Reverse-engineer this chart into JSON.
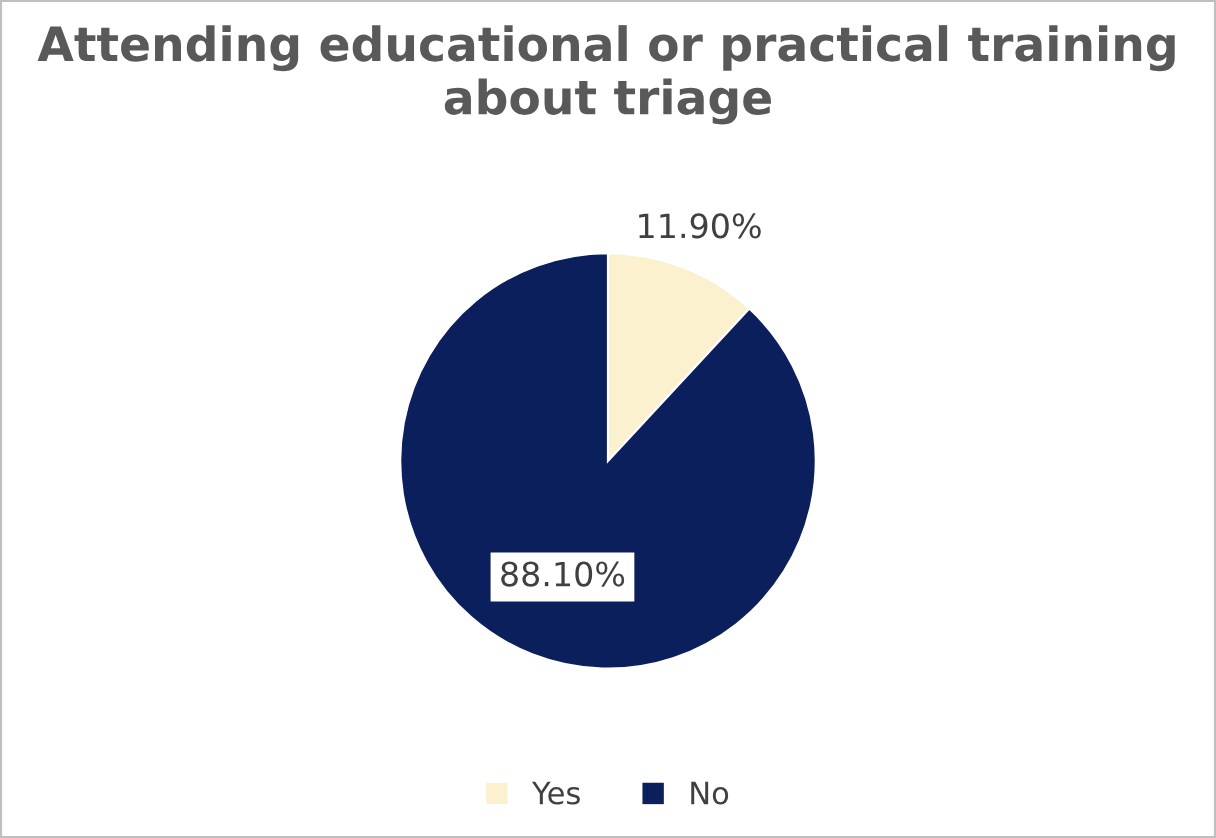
{
  "chart_data": {
    "type": "pie",
    "title": "Attending educational or practical training about triage",
    "categories": [
      "Yes",
      "No"
    ],
    "values": [
      11.9,
      88.1
    ],
    "colors": [
      "#fbf1cf",
      "#0b1f5c"
    ],
    "value_labels": [
      "11.90%",
      "88.10%"
    ],
    "legend": "bottom"
  }
}
